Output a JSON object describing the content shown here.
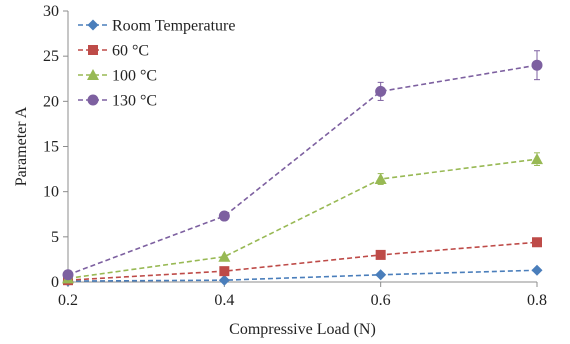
{
  "chart_data": {
    "type": "line",
    "title": "",
    "xlabel": "Compressive Load (N)",
    "ylabel": "Parameter A",
    "x": [
      0.2,
      0.4,
      0.6,
      0.8
    ],
    "x_ticks": [
      "0.2",
      "0.4",
      "0.6",
      "0.8"
    ],
    "xlim": [
      0.2,
      0.8
    ],
    "y_ticks": [
      "0",
      "5",
      "10",
      "15",
      "20",
      "25",
      "30"
    ],
    "ylim": [
      0,
      30
    ],
    "grid": false,
    "legend_position": "top-left",
    "line_style": "dashed",
    "series": [
      {
        "name": "Room Temperature",
        "values": [
          0.1,
          0.2,
          0.8,
          1.3
        ],
        "error": [
          0,
          0,
          0,
          0
        ],
        "color": "#4a7ebb",
        "marker": "diamond"
      },
      {
        "name": "60 °C",
        "values": [
          0.2,
          1.2,
          3.0,
          4.4
        ],
        "error": [
          0,
          0,
          0,
          0
        ],
        "color": "#be4b48",
        "marker": "square"
      },
      {
        "name": "100 °C",
        "values": [
          0.4,
          2.8,
          11.4,
          13.6
        ],
        "error": [
          0,
          0,
          0.6,
          0.7
        ],
        "color": "#98b954",
        "marker": "triangle"
      },
      {
        "name": "130 °C",
        "values": [
          0.8,
          7.3,
          21.1,
          24.0
        ],
        "error": [
          0,
          0,
          1.0,
          1.6
        ],
        "color": "#7d60a0",
        "marker": "circle"
      }
    ]
  }
}
